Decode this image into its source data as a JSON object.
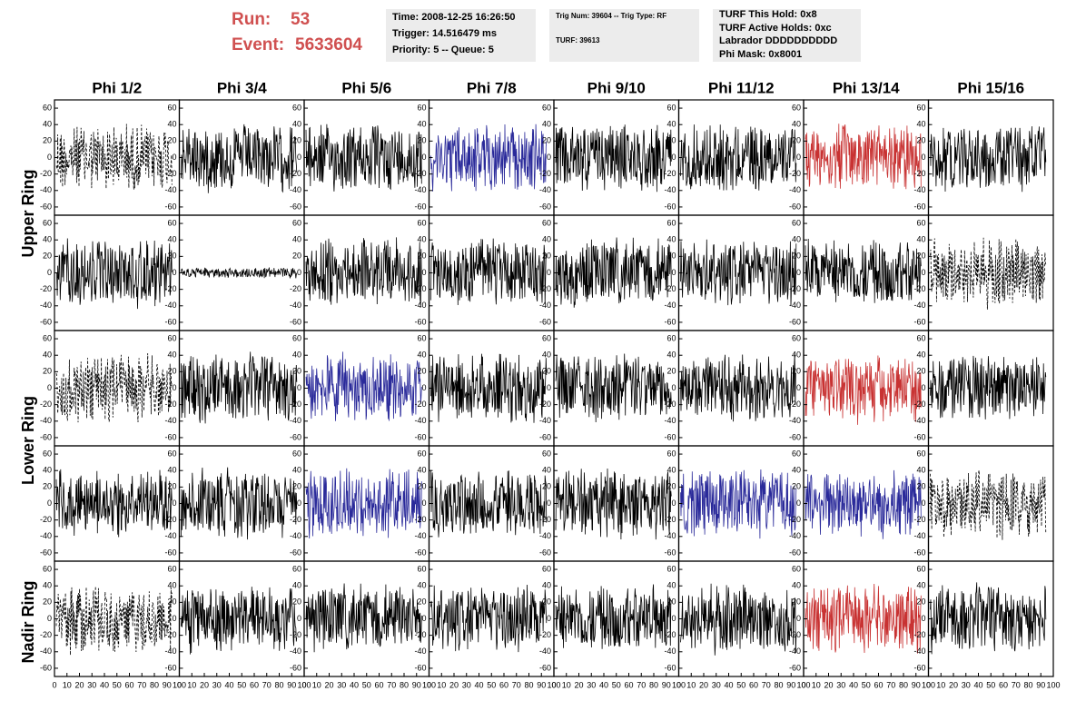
{
  "header": {
    "run_label": "Run:",
    "run": "53",
    "event_label": "Event:",
    "event": "5633604",
    "box1": [
      "Time: 2008-12-25 16:26:50",
      "Trigger: 14.516479 ms",
      "Priority: 5 -- Queue: 5"
    ],
    "box2": [
      "Trig Num: 39604 -- Trig Type: RF",
      "TURF: 39613"
    ],
    "box3": [
      "TURF This Hold: 0x8",
      "TURF Active Holds: 0xc",
      "Labrador DDDDDDDDDD",
      "Phi Mask: 0x8001"
    ]
  },
  "columns": [
    "Phi 1/2",
    "Phi 3/4",
    "Phi 5/6",
    "Phi 7/8",
    "Phi 9/10",
    "Phi 11/12",
    "Phi 13/14",
    "Phi 15/16"
  ],
  "ring_labels": [
    "Upper Ring",
    "Lower Ring",
    "Nadir Ring"
  ],
  "axes": {
    "ylim": [
      -70,
      70
    ],
    "yticks": [
      -60,
      -40,
      -20,
      0,
      20,
      40,
      60
    ],
    "xlim": [
      0,
      100
    ],
    "xticks": [
      0,
      10,
      20,
      30,
      40,
      50,
      60,
      70,
      80,
      90,
      100
    ]
  },
  "panels": {
    "colors": [
      [
        "#000000",
        "#000000",
        "#000000",
        "#2a2a9a",
        "#000000",
        "#000000",
        "#c83232",
        "#000000"
      ],
      [
        "#000000",
        "#000000",
        "#000000",
        "#000000",
        "#000000",
        "#000000",
        "#000000",
        "#000000"
      ],
      [
        "#000000",
        "#000000",
        "#2a2a9a",
        "#000000",
        "#000000",
        "#000000",
        "#c83232",
        "#000000"
      ],
      [
        "#000000",
        "#000000",
        "#2a2a9a",
        "#000000",
        "#000000",
        "#2a2a9a",
        "#2a2a9a",
        "#000000"
      ],
      [
        "#000000",
        "#000000",
        "#000000",
        "#000000",
        "#000000",
        "#000000",
        "#c83232",
        "#000000"
      ]
    ],
    "dashed": [
      [
        true,
        false,
        false,
        false,
        false,
        false,
        false,
        false
      ],
      [
        false,
        false,
        false,
        false,
        false,
        false,
        false,
        true
      ],
      [
        true,
        false,
        false,
        false,
        false,
        false,
        false,
        false
      ],
      [
        false,
        false,
        false,
        false,
        false,
        false,
        false,
        true
      ],
      [
        true,
        false,
        false,
        false,
        false,
        false,
        false,
        false
      ]
    ]
  }
}
